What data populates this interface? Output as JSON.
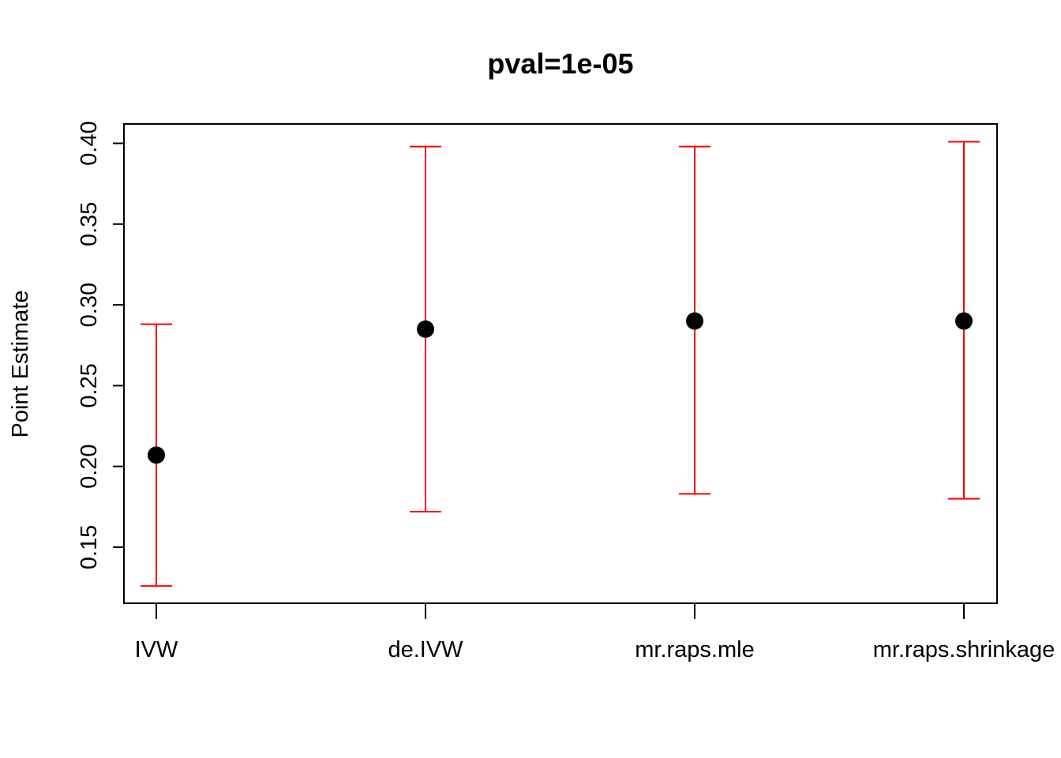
{
  "chart_data": {
    "type": "scatter",
    "title": "pval=1e-05",
    "xlabel": "",
    "ylabel": "Point Estimate",
    "categories": [
      "IVW",
      "de.IVW",
      "mr.raps.mle",
      "mr.raps.shrinkage"
    ],
    "values": [
      0.207,
      0.285,
      0.29,
      0.29
    ],
    "lower": [
      0.126,
      0.172,
      0.183,
      0.18
    ],
    "upper": [
      0.288,
      0.398,
      0.398,
      0.401
    ],
    "ylim": [
      0.115,
      0.412
    ],
    "yticks": [
      0.15,
      0.2,
      0.25,
      0.3,
      0.35,
      0.4
    ],
    "ytick_labels": [
      "0.15",
      "0.20",
      "0.25",
      "0.30",
      "0.35",
      "0.40"
    ],
    "grid": false,
    "colors": {
      "point": "#000000",
      "error_bar": "#ff0000",
      "axis": "#000000"
    }
  }
}
